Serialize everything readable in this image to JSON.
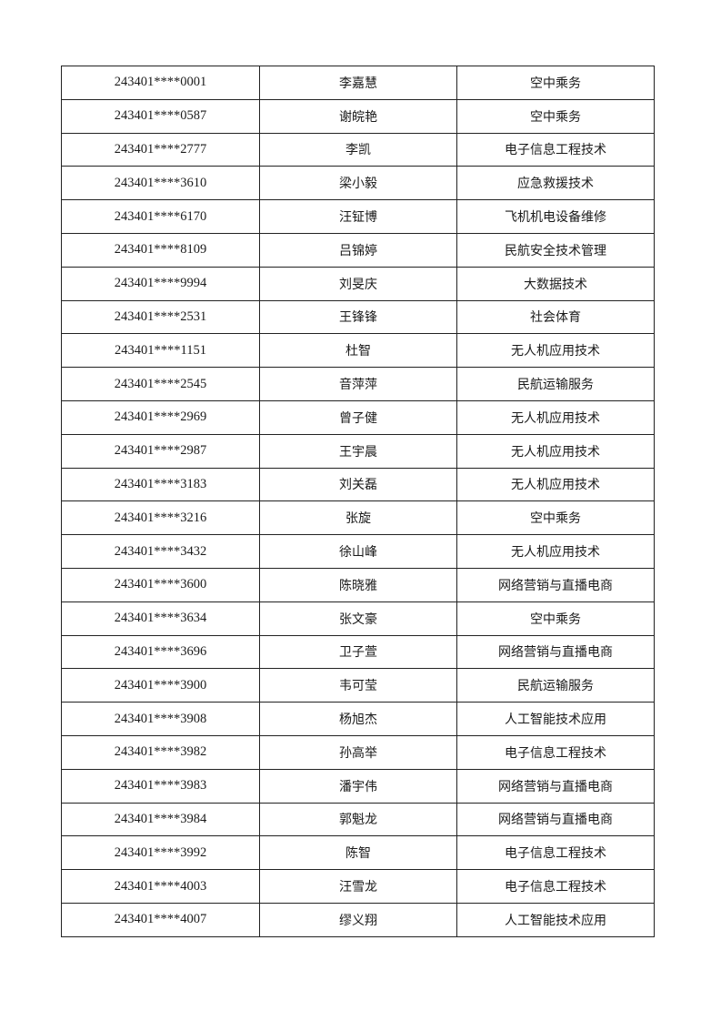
{
  "table": {
    "rows": [
      {
        "id": "243401****0001",
        "name": "李嘉慧",
        "major": "空中乘务"
      },
      {
        "id": "243401****0587",
        "name": "谢皖艳",
        "major": "空中乘务"
      },
      {
        "id": "243401****2777",
        "name": "李凯",
        "major": "电子信息工程技术"
      },
      {
        "id": "243401****3610",
        "name": "梁小毅",
        "major": "应急救援技术"
      },
      {
        "id": "243401****6170",
        "name": "汪钲博",
        "major": "飞机机电设备维修"
      },
      {
        "id": "243401****8109",
        "name": "吕锦婷",
        "major": "民航安全技术管理"
      },
      {
        "id": "243401****9994",
        "name": "刘旻庆",
        "major": "大数据技术"
      },
      {
        "id": "243401****2531",
        "name": "王锋锋",
        "major": "社会体育"
      },
      {
        "id": "243401****1151",
        "name": "杜智",
        "major": "无人机应用技术"
      },
      {
        "id": "243401****2545",
        "name": "音萍萍",
        "major": "民航运输服务"
      },
      {
        "id": "243401****2969",
        "name": "曾子健",
        "major": "无人机应用技术"
      },
      {
        "id": "243401****2987",
        "name": "王宇晨",
        "major": "无人机应用技术"
      },
      {
        "id": "243401****3183",
        "name": "刘关磊",
        "major": "无人机应用技术"
      },
      {
        "id": "243401****3216",
        "name": "张旋",
        "major": "空中乘务"
      },
      {
        "id": "243401****3432",
        "name": "徐山峰",
        "major": "无人机应用技术"
      },
      {
        "id": "243401****3600",
        "name": "陈晓雅",
        "major": "网络营销与直播电商"
      },
      {
        "id": "243401****3634",
        "name": "张文豪",
        "major": "空中乘务"
      },
      {
        "id": "243401****3696",
        "name": "卫子萱",
        "major": "网络营销与直播电商"
      },
      {
        "id": "243401****3900",
        "name": "韦可莹",
        "major": "民航运输服务"
      },
      {
        "id": "243401****3908",
        "name": "杨旭杰",
        "major": "人工智能技术应用"
      },
      {
        "id": "243401****3982",
        "name": "孙高举",
        "major": "电子信息工程技术"
      },
      {
        "id": "243401****3983",
        "name": "潘宇伟",
        "major": "网络营销与直播电商"
      },
      {
        "id": "243401****3984",
        "name": "郭魁龙",
        "major": "网络营销与直播电商"
      },
      {
        "id": "243401****3992",
        "name": "陈智",
        "major": "电子信息工程技术"
      },
      {
        "id": "243401****4003",
        "name": "汪雪龙",
        "major": "电子信息工程技术"
      },
      {
        "id": "243401****4007",
        "name": "缪义翔",
        "major": "人工智能技术应用"
      }
    ]
  }
}
